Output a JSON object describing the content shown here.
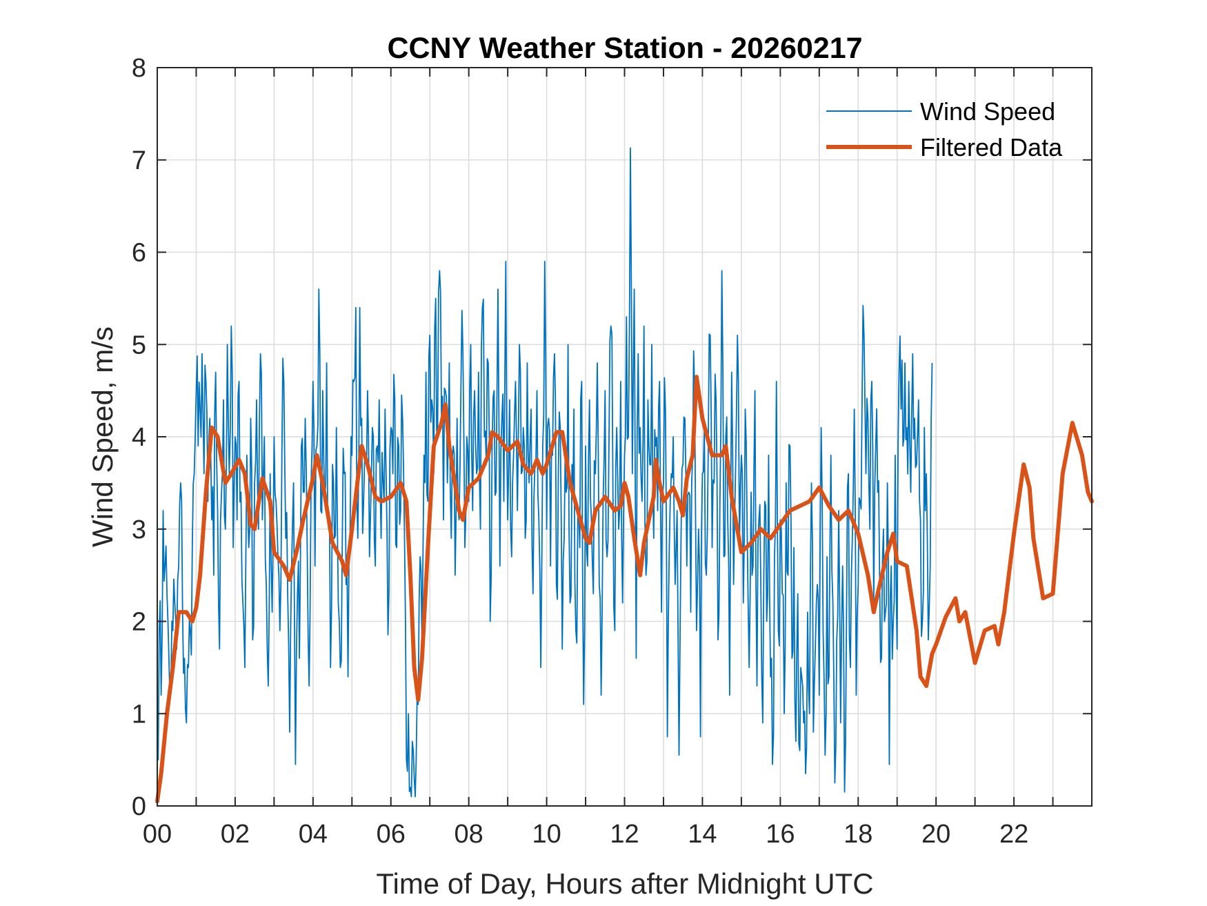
{
  "chart_data": {
    "type": "line",
    "title": "CCNY Weather Station - 20260217",
    "xlabel": "Time of Day, Hours after Midnight UTC",
    "ylabel": "Wind Speed, m/s",
    "xlim": [
      0,
      24
    ],
    "ylim": [
      0,
      8
    ],
    "grid": true,
    "legend_position": "top-right",
    "x_ticks": [
      0,
      2,
      4,
      6,
      8,
      10,
      12,
      14,
      16,
      18,
      20,
      22
    ],
    "x_tick_labels": [
      "00",
      "02",
      "04",
      "06",
      "08",
      "10",
      "12",
      "14",
      "16",
      "18",
      "20",
      "22"
    ],
    "x_minor_grid": [
      1,
      3,
      5,
      7,
      9,
      11,
      13,
      15,
      17,
      19,
      21,
      23
    ],
    "y_ticks": [
      0,
      1,
      2,
      3,
      4,
      5,
      6,
      7,
      8
    ],
    "y_tick_labels": [
      "0",
      "1",
      "2",
      "3",
      "4",
      "5",
      "6",
      "7",
      "8"
    ],
    "series": [
      {
        "name": "Wind Speed",
        "color": "#0072BD",
        "style": "thin",
        "x_step_hours": 0.05,
        "values": [
          0.7,
          1.9,
          1.2,
          3.2,
          2.6,
          2.3,
          1.6,
          1.3,
          1.9,
          2.2,
          1.7,
          2.6,
          3.5,
          2.1,
          1.6,
          0.9,
          1.5,
          1.9,
          2.8,
          3.6,
          4.5,
          3.9,
          4.3,
          4.9,
          3.6,
          4.6,
          3.3,
          4.2,
          3.1,
          2.5,
          4.7,
          3.2,
          1.7,
          3.4,
          4.4,
          3.0,
          5.0,
          3.6,
          5.2,
          2.8,
          4.0,
          3.1,
          4.6,
          3.4,
          2.2,
          1.5,
          3.8,
          2.8,
          4.2,
          1.8,
          3.5,
          4.4,
          3.0,
          4.9,
          3.1,
          4.0,
          2.4,
          1.3,
          3.6,
          2.1,
          4.0,
          3.3,
          2.7,
          1.9,
          3.8,
          4.6,
          2.9,
          2.3,
          0.8,
          2.6,
          3.5,
          0.45,
          2.3,
          1.6,
          3.9,
          3.4,
          4.2,
          2.8,
          1.3,
          3.5,
          4.6,
          2.6,
          3.9,
          5.6,
          3.2,
          4.5,
          3.3,
          4.8,
          3.0,
          1.5,
          3.7,
          2.9,
          4.1,
          2.2,
          1.5,
          2.8,
          3.6,
          2.4,
          1.4,
          2.9,
          3.8,
          4.6,
          5.4,
          2.9,
          5.4,
          4.2,
          3.3,
          3.8,
          4.5,
          2.7,
          3.6,
          4.0,
          2.6,
          3.9,
          4.4,
          2.9,
          3.5,
          4.3,
          3.0,
          2.3,
          4.1,
          3.6,
          4.4,
          2.8,
          3.9,
          3.2,
          4.2,
          2.9,
          0.5,
          1.0,
          0.2,
          0.7,
          0.3,
          0.5,
          1.1,
          2.7,
          1.7,
          3.8,
          4.7,
          3.3,
          5.1,
          4.4,
          3.6,
          5.5,
          4.1,
          5.8,
          4.2,
          3.1,
          4.5,
          3.5,
          4.8,
          2.9,
          3.9,
          2.5,
          4.2,
          3.1,
          4.6,
          4.9,
          2.8,
          4.0,
          3.3,
          5.0,
          3.2,
          4.5,
          3.6,
          4.7,
          3.0,
          5.4,
          4.0,
          3.7,
          4.8,
          2.0,
          3.9,
          4.5,
          3.4,
          5.6,
          2.6,
          4.2,
          3.3,
          5.9,
          3.1,
          4.4,
          2.7,
          3.8,
          4.6,
          3.2,
          5.0,
          3.6,
          4.1,
          2.9,
          4.8,
          3.5,
          4.3,
          2.3,
          3.7,
          4.5,
          3.1,
          1.5,
          3.9,
          5.9,
          3.0,
          4.2,
          2.6,
          3.8,
          4.9,
          2.4,
          3.6,
          4.1,
          1.7,
          2.9,
          3.4,
          5.0,
          2.2,
          3.7,
          4.3,
          1.9,
          3.2,
          2.8,
          4.6,
          1.1,
          3.9,
          2.6,
          4.4,
          3.1,
          2.3,
          3.6,
          4.8,
          2.4,
          1.2,
          3.3,
          4.5,
          2.7,
          3.9,
          5.2,
          3.5,
          1.9,
          4.1,
          3.0,
          4.6,
          2.2,
          3.8,
          5.3,
          4.0,
          7.13,
          3.6,
          5.6,
          1.6,
          4.9,
          4.1,
          3.3,
          5.2,
          2.5,
          4.4,
          3.7,
          5.0,
          2.9,
          3.9,
          3.2,
          4.6,
          2.1,
          3.5,
          4.3,
          0.75,
          2.8,
          3.6,
          4.0,
          2.4,
          3.2,
          0.55,
          2.9,
          3.7,
          4.2,
          2.6,
          3.4,
          2.1,
          3.8,
          4.5,
          1.9,
          3.0,
          0.75,
          3.6,
          4.1,
          2.5,
          3.9,
          5.1,
          2.8,
          3.5,
          4.4,
          1.8,
          3.3,
          5.8,
          2.7,
          4.0,
          3.1,
          1.2,
          4.7,
          2.4,
          3.6,
          5.1,
          2.9,
          3.8,
          2.2,
          4.3,
          3.0,
          1.5,
          3.4,
          2.6,
          4.5,
          1.3,
          3.1,
          2.4,
          0.9,
          3.3,
          2.0,
          3.8,
          1.4,
          0.45,
          2.7,
          4.6,
          1.9,
          3.1,
          2.3,
          1.0,
          3.5,
          2.5,
          3.9,
          1.6,
          2.8,
          0.7,
          2.3,
          0.6,
          1.4,
          0.9,
          0.35,
          2.1,
          1.0,
          3.5,
          0.8,
          1.7,
          2.4,
          1.2,
          4.1,
          1.9,
          0.55,
          2.7,
          1.4,
          3.8,
          2.2,
          0.25,
          1.8,
          3.2,
          0.9,
          2.6,
          0.15,
          2.0,
          3.6,
          1.5,
          2.9,
          4.3,
          1.2,
          2.4,
          3.3,
          4.4,
          5.1,
          3.6,
          4.2,
          3.0,
          4.6,
          2.2,
          3.9,
          3.4,
          2.5,
          1.6,
          3.0,
          2.1,
          3.5,
          0.45,
          2.6,
          2.0,
          3.8,
          1.7,
          4.7,
          4.3,
          3.9,
          4.8,
          4.1,
          4.6,
          3.4,
          4.9,
          4.2,
          3.7,
          4.4,
          3.1,
          2.0,
          4.1,
          3.6,
          1.8,
          2.6,
          4.8
        ]
      },
      {
        "name": "Filtered Data",
        "color": "#D95319",
        "style": "thick",
        "points": [
          [
            0.0,
            0.05
          ],
          [
            0.1,
            0.35
          ],
          [
            0.25,
            1.0
          ],
          [
            0.4,
            1.5
          ],
          [
            0.55,
            2.1
          ],
          [
            0.75,
            2.1
          ],
          [
            0.9,
            2.0
          ],
          [
            1.0,
            2.15
          ],
          [
            1.1,
            2.5
          ],
          [
            1.25,
            3.4
          ],
          [
            1.4,
            4.1
          ],
          [
            1.55,
            4.0
          ],
          [
            1.75,
            3.5
          ],
          [
            1.9,
            3.6
          ],
          [
            2.1,
            3.75
          ],
          [
            2.25,
            3.6
          ],
          [
            2.4,
            3.05
          ],
          [
            2.5,
            3.0
          ],
          [
            2.7,
            3.55
          ],
          [
            2.9,
            3.3
          ],
          [
            3.0,
            2.75
          ],
          [
            3.25,
            2.6
          ],
          [
            3.4,
            2.45
          ],
          [
            3.6,
            2.8
          ],
          [
            3.75,
            3.1
          ],
          [
            4.0,
            3.55
          ],
          [
            4.1,
            3.8
          ],
          [
            4.25,
            3.5
          ],
          [
            4.5,
            2.85
          ],
          [
            4.75,
            2.65
          ],
          [
            4.85,
            2.5
          ],
          [
            5.0,
            3.0
          ],
          [
            5.25,
            3.9
          ],
          [
            5.4,
            3.7
          ],
          [
            5.6,
            3.35
          ],
          [
            5.75,
            3.3
          ],
          [
            6.0,
            3.35
          ],
          [
            6.25,
            3.5
          ],
          [
            6.4,
            3.3
          ],
          [
            6.5,
            2.5
          ],
          [
            6.6,
            1.5
          ],
          [
            6.7,
            1.15
          ],
          [
            6.8,
            1.6
          ],
          [
            6.95,
            2.8
          ],
          [
            7.1,
            3.9
          ],
          [
            7.3,
            4.15
          ],
          [
            7.4,
            4.35
          ],
          [
            7.5,
            3.9
          ],
          [
            7.75,
            3.2
          ],
          [
            7.85,
            3.1
          ],
          [
            8.0,
            3.45
          ],
          [
            8.25,
            3.55
          ],
          [
            8.5,
            3.8
          ],
          [
            8.6,
            4.05
          ],
          [
            8.75,
            4.0
          ],
          [
            9.0,
            3.85
          ],
          [
            9.25,
            3.95
          ],
          [
            9.4,
            3.7
          ],
          [
            9.6,
            3.6
          ],
          [
            9.75,
            3.75
          ],
          [
            9.9,
            3.6
          ],
          [
            10.0,
            3.7
          ],
          [
            10.25,
            4.05
          ],
          [
            10.4,
            4.05
          ],
          [
            10.6,
            3.5
          ],
          [
            10.8,
            3.2
          ],
          [
            11.0,
            2.9
          ],
          [
            11.1,
            2.85
          ],
          [
            11.25,
            3.2
          ],
          [
            11.5,
            3.35
          ],
          [
            11.75,
            3.2
          ],
          [
            11.9,
            3.25
          ],
          [
            12.0,
            3.5
          ],
          [
            12.1,
            3.35
          ],
          [
            12.25,
            2.9
          ],
          [
            12.4,
            2.5
          ],
          [
            12.5,
            2.85
          ],
          [
            12.75,
            3.35
          ],
          [
            12.8,
            3.75
          ],
          [
            12.9,
            3.5
          ],
          [
            13.0,
            3.3
          ],
          [
            13.25,
            3.45
          ],
          [
            13.4,
            3.3
          ],
          [
            13.5,
            3.15
          ],
          [
            13.6,
            3.55
          ],
          [
            13.75,
            3.8
          ],
          [
            13.85,
            4.65
          ],
          [
            14.0,
            4.2
          ],
          [
            14.25,
            3.8
          ],
          [
            14.5,
            3.8
          ],
          [
            14.6,
            3.9
          ],
          [
            14.75,
            3.35
          ],
          [
            15.0,
            2.75
          ],
          [
            15.25,
            2.85
          ],
          [
            15.5,
            3.0
          ],
          [
            15.75,
            2.9
          ],
          [
            16.0,
            3.05
          ],
          [
            16.25,
            3.2
          ],
          [
            16.5,
            3.25
          ],
          [
            16.75,
            3.3
          ],
          [
            17.0,
            3.45
          ],
          [
            17.25,
            3.25
          ],
          [
            17.5,
            3.1
          ],
          [
            17.75,
            3.2
          ],
          [
            18.0,
            2.95
          ],
          [
            18.25,
            2.5
          ],
          [
            18.4,
            2.1
          ],
          [
            18.5,
            2.3
          ],
          [
            18.75,
            2.75
          ],
          [
            18.9,
            2.95
          ],
          [
            19.0,
            2.65
          ],
          [
            19.25,
            2.6
          ],
          [
            19.5,
            1.9
          ],
          [
            19.6,
            1.4
          ],
          [
            19.75,
            1.3
          ],
          [
            19.9,
            1.65
          ],
          [
            20.0,
            1.75
          ],
          [
            20.25,
            2.05
          ],
          [
            20.5,
            2.25
          ],
          [
            20.6,
            2.0
          ],
          [
            20.75,
            2.1
          ],
          [
            21.0,
            1.55
          ],
          [
            21.25,
            1.9
          ],
          [
            21.5,
            1.95
          ],
          [
            21.6,
            1.75
          ],
          [
            21.75,
            2.1
          ],
          [
            22.0,
            2.95
          ],
          [
            22.25,
            3.7
          ],
          [
            22.4,
            3.45
          ],
          [
            22.5,
            2.9
          ],
          [
            22.75,
            2.25
          ],
          [
            23.0,
            2.3
          ],
          [
            23.25,
            3.6
          ],
          [
            23.5,
            4.15
          ],
          [
            23.75,
            3.8
          ],
          [
            23.9,
            3.4
          ],
          [
            24.0,
            3.3
          ]
        ]
      }
    ]
  }
}
